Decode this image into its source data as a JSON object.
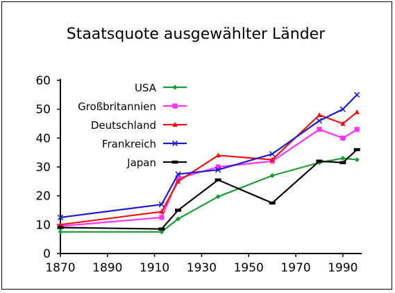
{
  "chart_data": {
    "type": "line",
    "title": "Staatsquote ausgewählter Länder",
    "xlabel": "",
    "ylabel": "",
    "xlim": [
      1870,
      1998
    ],
    "ylim": [
      0,
      60
    ],
    "xticks": [
      1870,
      1890,
      1910,
      1930,
      1950,
      1970,
      1990
    ],
    "yticks": [
      0,
      10,
      20,
      30,
      40,
      50,
      60
    ],
    "grid": false,
    "legend_position": "top-left (inside plot area)",
    "series": [
      {
        "name": "USA",
        "color": "#1f9c3a",
        "marker": "diamond",
        "x": [
          1870,
          1913,
          1920,
          1937,
          1960,
          1980,
          1990,
          1996
        ],
        "y": [
          7.5,
          7.5,
          12,
          19.7,
          27,
          31.5,
          33,
          32.5
        ]
      },
      {
        "name": "Großbritannien",
        "color": "#ff33ff",
        "marker": "square",
        "x": [
          1870,
          1913,
          1920,
          1937,
          1960,
          1980,
          1990,
          1996
        ],
        "y": [
          9.5,
          12.5,
          26,
          30,
          32,
          43,
          40,
          43
        ]
      },
      {
        "name": "Deutschland",
        "color": "#ee1111",
        "marker": "triangle",
        "x": [
          1870,
          1913,
          1920,
          1937,
          1960,
          1980,
          1990,
          1996
        ],
        "y": [
          10,
          14.5,
          25,
          34,
          32.5,
          48,
          45,
          49
        ]
      },
      {
        "name": "Frankreich",
        "color": "#1a1acc",
        "marker": "x",
        "x": [
          1870,
          1913,
          1920,
          1937,
          1960,
          1980,
          1990,
          1996
        ],
        "y": [
          12.5,
          17,
          27.5,
          29,
          34.5,
          46,
          50,
          55
        ]
      },
      {
        "name": "Japan",
        "color": "#000000",
        "marker": "bar",
        "x": [
          1870,
          1913,
          1920,
          1937,
          1960,
          1980,
          1990,
          1996
        ],
        "y": [
          9,
          8.5,
          15,
          25.5,
          17.5,
          32,
          31.5,
          36
        ]
      }
    ]
  }
}
